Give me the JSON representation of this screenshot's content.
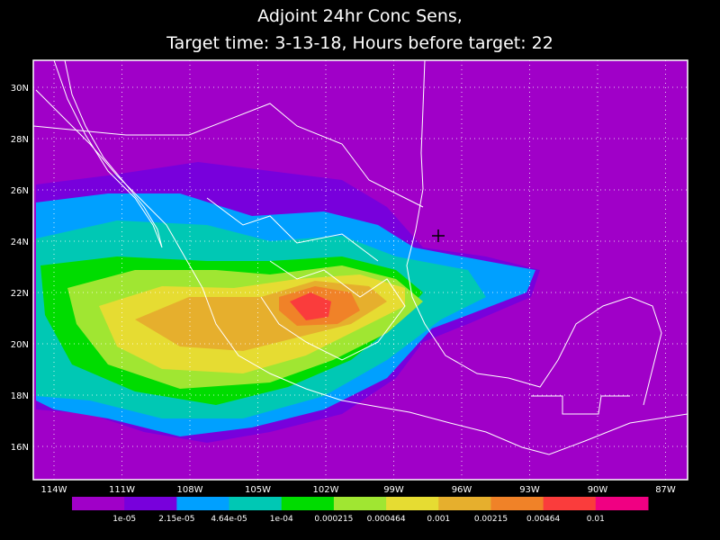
{
  "title": [
    "Adjoint 24hr Conc Sens,",
    "Target time: 3-13-18, Hours before target: 22"
  ],
  "lat_labels": [
    "30N",
    "28N",
    "26N",
    "24N",
    "22N",
    "20N",
    "18N",
    "16N"
  ],
  "lon_labels": [
    "114W",
    "111W",
    "108W",
    "105W",
    "102W",
    "99W",
    "96W",
    "93W",
    "90W",
    "87W"
  ],
  "colorbar": {
    "colors": [
      "#a000c8",
      "#7800dc",
      "#00a0ff",
      "#00c8b4",
      "#00dc00",
      "#a0e632",
      "#e6dc32",
      "#e6af2d",
      "#f08228",
      "#fa3c3c",
      "#f00082"
    ],
    "labels": [
      "1e-05",
      "2.15e-05",
      "4.64e-05",
      "1e-04",
      "0.000215",
      "0.000464",
      "0.001",
      "0.00215",
      "0.00464",
      "0.01"
    ]
  }
}
